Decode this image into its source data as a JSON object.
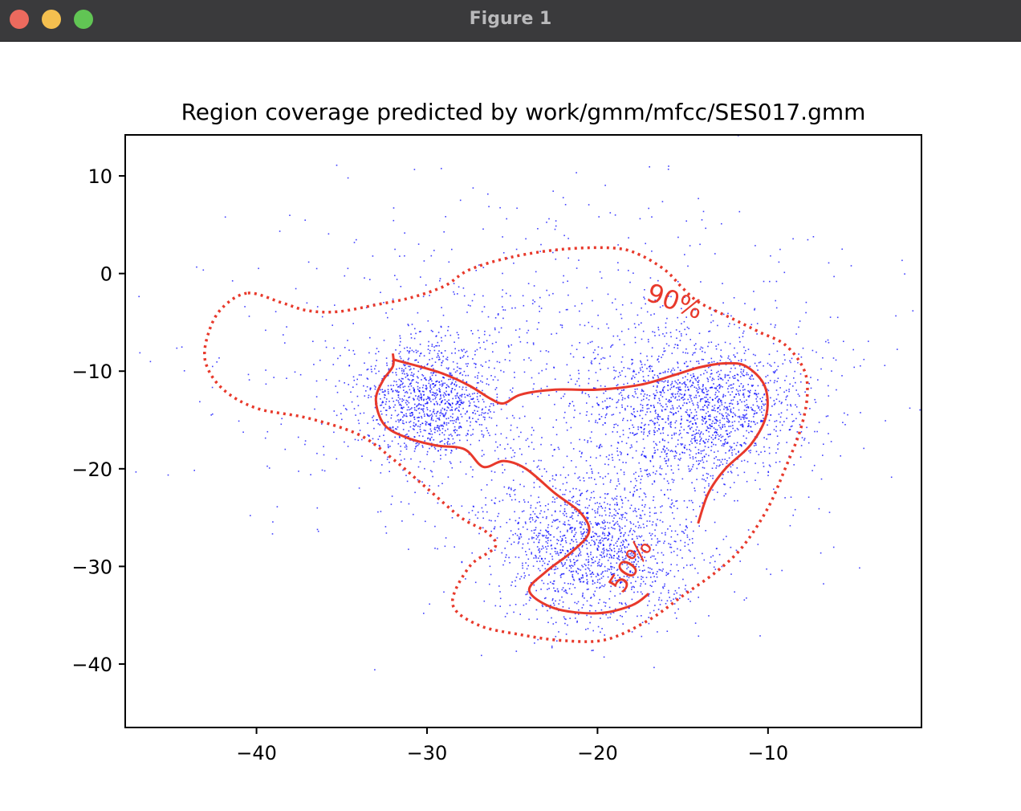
{
  "window": {
    "title": "Figure 1",
    "controls": {
      "close_color": "#ec6a5e",
      "minimize_color": "#f4bf4f",
      "maximize_color": "#61c554"
    }
  },
  "chart_data": {
    "type": "scatter",
    "title": "Region coverage predicted by work/gmm/mfcc/SES017.gmm",
    "xlabel": "",
    "ylabel": "",
    "xlim": [
      -47.7,
      -1.0
    ],
    "ylim": [
      -46.5,
      14.2
    ],
    "xticks": [
      -40,
      -30,
      -20,
      -10
    ],
    "yticks": [
      10,
      0,
      -10,
      -20,
      -30,
      -40
    ],
    "grid": false,
    "point_color": "#0000ff",
    "contour_color": "#e8392b",
    "point_count": 5000,
    "clusters": [
      {
        "center": [
          -30,
          -13
        ],
        "spread": [
          2.0,
          3.0
        ],
        "weight": 0.2
      },
      {
        "center": [
          -20,
          -28
        ],
        "spread": [
          3.0,
          4.0
        ],
        "weight": 0.3
      },
      {
        "center": [
          -14,
          -14
        ],
        "spread": [
          3.0,
          3.5
        ],
        "weight": 0.3
      },
      {
        "center": [
          -23,
          -10
        ],
        "spread": [
          9.0,
          9.0
        ],
        "weight": 0.2
      }
    ],
    "contours": [
      {
        "label": "90%",
        "style": "dotted",
        "points": [
          [
            -40.5,
            -2.0
          ],
          [
            -38.5,
            -3.0
          ],
          [
            -37.0,
            -3.8
          ],
          [
            -35.2,
            -3.9
          ],
          [
            -33.0,
            -3.2
          ],
          [
            -31.0,
            -2.5
          ],
          [
            -29.0,
            -1.3
          ],
          [
            -27.5,
            0.4
          ],
          [
            -25.0,
            1.7
          ],
          [
            -22.0,
            2.5
          ],
          [
            -19.0,
            2.6
          ],
          [
            -17.5,
            1.9
          ],
          [
            -16.0,
            0.3
          ],
          [
            -15.0,
            -1.5
          ],
          [
            -14.0,
            -3.0
          ],
          [
            -12.0,
            -4.7
          ],
          [
            -10.5,
            -6.0
          ],
          [
            -9.0,
            -7.3
          ],
          [
            -7.9,
            -9.8
          ],
          [
            -7.7,
            -12.5
          ],
          [
            -8.1,
            -16.0
          ],
          [
            -9.0,
            -20.0
          ],
          [
            -10.0,
            -24.0
          ],
          [
            -11.5,
            -28.0
          ],
          [
            -13.0,
            -30.5
          ],
          [
            -15.0,
            -33.0
          ],
          [
            -17.0,
            -35.5
          ],
          [
            -19.5,
            -37.5
          ],
          [
            -22.0,
            -37.6
          ],
          [
            -24.5,
            -37.0
          ],
          [
            -27.0,
            -36.0
          ],
          [
            -28.5,
            -33.8
          ],
          [
            -27.5,
            -30.0
          ],
          [
            -26.0,
            -28.0
          ],
          [
            -26.5,
            -26.5
          ],
          [
            -28.0,
            -25.0
          ],
          [
            -30.0,
            -22.0
          ],
          [
            -32.0,
            -19.0
          ],
          [
            -34.0,
            -16.5
          ],
          [
            -37.0,
            -14.8
          ],
          [
            -40.0,
            -13.8
          ],
          [
            -42.0,
            -11.8
          ],
          [
            -43.0,
            -9.0
          ],
          [
            -42.8,
            -6.0
          ],
          [
            -42.0,
            -3.5
          ]
        ],
        "label_position": [
          -15.5,
          -3.0
        ],
        "label_rotation": 20
      },
      {
        "label": "50%",
        "style": "solid",
        "points": [
          [
            -32.0,
            -8.8
          ],
          [
            -30.5,
            -9.5
          ],
          [
            -29.0,
            -10.3
          ],
          [
            -27.5,
            -11.5
          ],
          [
            -26.3,
            -12.8
          ],
          [
            -25.5,
            -13.3
          ],
          [
            -24.5,
            -12.4
          ],
          [
            -22.5,
            -11.9
          ],
          [
            -20.0,
            -11.9
          ],
          [
            -17.5,
            -11.4
          ],
          [
            -15.5,
            -10.4
          ],
          [
            -14.0,
            -9.6
          ],
          [
            -12.5,
            -9.2
          ],
          [
            -11.3,
            -9.5
          ],
          [
            -10.2,
            -11.5
          ],
          [
            -10.1,
            -14.5
          ],
          [
            -11.0,
            -17.5
          ],
          [
            -12.5,
            -20.0
          ],
          [
            -13.5,
            -22.5
          ],
          [
            -14.1,
            -25.6
          ]
        ],
        "label_position": [
          -18.0,
          -30.0
        ],
        "label_rotation": -58
      },
      {
        "label": "",
        "style": "solid",
        "points": [
          [
            -17.0,
            -32.8
          ],
          [
            -18.0,
            -34.0
          ],
          [
            -20.0,
            -34.8
          ],
          [
            -22.5,
            -34.3
          ],
          [
            -24.0,
            -32.5
          ],
          [
            -23.0,
            -30.5
          ],
          [
            -21.5,
            -28.5
          ],
          [
            -20.5,
            -26.5
          ],
          [
            -21.0,
            -24.5
          ],
          [
            -22.5,
            -22.5
          ],
          [
            -24.2,
            -20.0
          ],
          [
            -25.5,
            -19.2
          ],
          [
            -26.7,
            -19.8
          ],
          [
            -27.8,
            -18.0
          ],
          [
            -29.5,
            -17.6
          ],
          [
            -31.2,
            -16.8
          ],
          [
            -32.5,
            -15.5
          ],
          [
            -33.0,
            -13.0
          ],
          [
            -32.6,
            -11.0
          ],
          [
            -32.0,
            -9.5
          ],
          [
            -32.0,
            -8.2
          ]
        ]
      }
    ]
  }
}
